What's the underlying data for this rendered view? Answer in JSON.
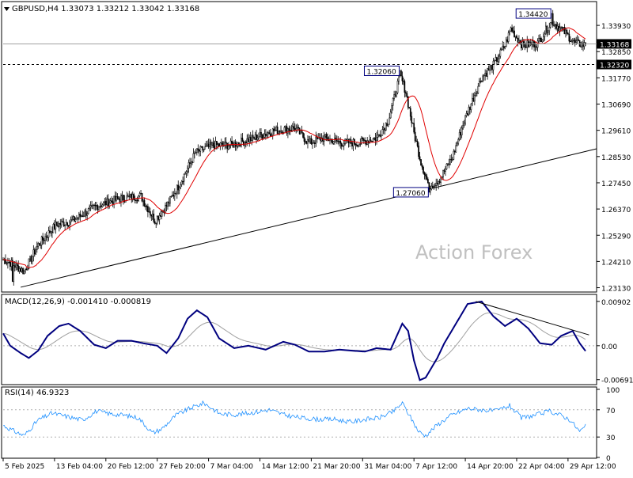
{
  "header": {
    "symbol_line": "GBPUSD,H4  1.33073  1.33212  1.33042  1.33168"
  },
  "watermark": "Action Forex",
  "colors": {
    "background": "#ffffff",
    "frame": "#000000",
    "candle": "#000000",
    "ma": "#e00000",
    "trendline": "#000000",
    "macd": "#00007f",
    "macd_signal": "#a0a0a0",
    "rsi": "#1e90ff",
    "level_line": "#000000",
    "watermark": "#c0c0c0"
  },
  "chart_data": [
    {
      "type": "candlestick",
      "panel": "price",
      "ylim": [
        1.2305,
        1.3478
      ],
      "y_ticks": [
        "1.33930",
        "1.32850",
        "1.31770",
        "1.30690",
        "1.29610",
        "1.28530",
        "1.27450",
        "1.26370",
        "1.25290",
        "1.24210",
        "1.23130"
      ],
      "x_tick_labels": [
        "5 Feb 2025",
        "13 Feb 04:00",
        "20 Feb 12:00",
        "27 Feb 20:00",
        "7 Mar 04:00",
        "14 Mar 12:00",
        "21 Mar 20:00",
        "31 Mar 04:00",
        "7 Apr 12:00",
        "14 Apr 20:00",
        "22 Apr 04:00",
        "29 Apr 12:00"
      ],
      "x_tick_index": [
        0,
        44,
        88,
        132,
        176,
        220,
        264,
        308,
        352,
        396,
        440,
        484
      ],
      "bar_count": 500,
      "close_anchors": [
        [
          0,
          1.243
        ],
        [
          8,
          1.241
        ],
        [
          18,
          1.238
        ],
        [
          30,
          1.249
        ],
        [
          45,
          1.257
        ],
        [
          60,
          1.259
        ],
        [
          80,
          1.265
        ],
        [
          100,
          1.268
        ],
        [
          118,
          1.269
        ],
        [
          130,
          1.259
        ],
        [
          140,
          1.265
        ],
        [
          150,
          1.273
        ],
        [
          165,
          1.287
        ],
        [
          180,
          1.29
        ],
        [
          195,
          1.29
        ],
        [
          215,
          1.293
        ],
        [
          232,
          1.296
        ],
        [
          250,
          1.297
        ],
        [
          262,
          1.291
        ],
        [
          275,
          1.293
        ],
        [
          290,
          1.291
        ],
        [
          305,
          1.291
        ],
        [
          320,
          1.293
        ],
        [
          330,
          1.3
        ],
        [
          340,
          1.319
        ],
        [
          345,
          1.312
        ],
        [
          352,
          1.295
        ],
        [
          358,
          1.283
        ],
        [
          365,
          1.273
        ],
        [
          374,
          1.276
        ],
        [
          385,
          1.285
        ],
        [
          395,
          1.3
        ],
        [
          410,
          1.318
        ],
        [
          420,
          1.323
        ],
        [
          430,
          1.331
        ],
        [
          435,
          1.338
        ],
        [
          445,
          1.331
        ],
        [
          458,
          1.332
        ],
        [
          470,
          1.341
        ],
        [
          480,
          1.337
        ],
        [
          490,
          1.332
        ],
        [
          500,
          1.331
        ]
      ],
      "extremes": [
        [
          8,
          1.2338
        ],
        [
          340,
          1.3206
        ],
        [
          365,
          1.2706
        ],
        [
          470,
          1.3442
        ]
      ],
      "last_close": 1.33168,
      "ma_span": 20,
      "ma_start": [
        1.243,
        1.2405
      ],
      "markers": [
        {
          "label": "1.32060",
          "index": 340,
          "value": 1.3206,
          "align": "left"
        },
        {
          "label": "1.27060",
          "index": 365,
          "value": 1.2706,
          "align": "left"
        },
        {
          "label": "1.34420",
          "index": 470,
          "value": 1.3442,
          "align": "left"
        }
      ],
      "current_price_label": "1.33168",
      "level": {
        "label": "1.32320",
        "value": 1.3232
      },
      "trendline": [
        [
          15,
          1.2315
        ],
        [
          520,
          1.2885
        ]
      ]
    },
    {
      "type": "line",
      "panel": "macd",
      "title": "MACD(12,26,9) -0.001410 -0.000819",
      "ylim": [
        -0.0076,
        0.0098
      ],
      "y_ticks": [
        "0.00902",
        "0.00",
        "-0.006915"
      ],
      "series": [
        {
          "name": "MACD",
          "points": [
            [
              0,
              0.0025
            ],
            [
              6,
              0.0
            ],
            [
              15,
              -0.0015
            ],
            [
              22,
              -0.0025
            ],
            [
              30,
              -0.001
            ],
            [
              38,
              0.002
            ],
            [
              48,
              0.004
            ],
            [
              56,
              0.0045
            ],
            [
              66,
              0.003
            ],
            [
              78,
              0.0002
            ],
            [
              88,
              -0.0005
            ],
            [
              98,
              0.001
            ],
            [
              110,
              0.001
            ],
            [
              120,
              0.0005
            ],
            [
              132,
              0.0
            ],
            [
              140,
              -0.0015
            ],
            [
              150,
              0.0015
            ],
            [
              158,
              0.0055
            ],
            [
              166,
              0.0072
            ],
            [
              175,
              0.0058
            ],
            [
              185,
              0.0015
            ],
            [
              198,
              -0.0005
            ],
            [
              210,
              0.0
            ],
            [
              225,
              -0.0008
            ],
            [
              240,
              0.0008
            ],
            [
              250,
              0.0002
            ],
            [
              262,
              -0.0012
            ],
            [
              275,
              -0.0012
            ],
            [
              288,
              -0.0008
            ],
            [
              298,
              -0.001
            ],
            [
              310,
              -0.0012
            ],
            [
              320,
              -0.0005
            ],
            [
              332,
              -0.0008
            ],
            [
              342,
              0.0045
            ],
            [
              347,
              0.003
            ],
            [
              352,
              -0.003
            ],
            [
              357,
              -0.007
            ],
            [
              362,
              -0.0065
            ],
            [
              372,
              -0.0025
            ],
            [
              378,
              0.0005
            ],
            [
              388,
              0.0045
            ],
            [
              398,
              0.0085
            ],
            [
              410,
              0.009
            ],
            [
              420,
              0.006
            ],
            [
              430,
              0.004
            ],
            [
              440,
              0.0055
            ],
            [
              450,
              0.0035
            ],
            [
              460,
              0.0005
            ],
            [
              470,
              0.0002
            ],
            [
              478,
              0.002
            ],
            [
              488,
              0.003
            ],
            [
              494,
              0.0005
            ],
            [
              500,
              -0.0014
            ]
          ]
        },
        {
          "name": "Signal",
          "smoothing": 0.06
        }
      ],
      "trendline": [
        [
          405,
          0.009
        ],
        [
          502,
          0.0022
        ]
      ]
    },
    {
      "type": "line",
      "panel": "rsi",
      "title": "RSI(14) 46.9323",
      "ylim": [
        0,
        100
      ],
      "y_ticks": [
        "100",
        "70",
        "30",
        "0"
      ],
      "levels": [
        70,
        30
      ],
      "series": [
        {
          "name": "RSI",
          "points": [
            [
              0,
              47
            ],
            [
              10,
              38
            ],
            [
              18,
              32
            ],
            [
              30,
              55
            ],
            [
              42,
              65
            ],
            [
              55,
              60
            ],
            [
              68,
              55
            ],
            [
              80,
              68
            ],
            [
              92,
              64
            ],
            [
              104,
              62
            ],
            [
              116,
              58
            ],
            [
              128,
              36
            ],
            [
              136,
              42
            ],
            [
              148,
              62
            ],
            [
              160,
              72
            ],
            [
              172,
              80
            ],
            [
              186,
              64
            ],
            [
              200,
              63
            ],
            [
              214,
              66
            ],
            [
              228,
              70
            ],
            [
              242,
              62
            ],
            [
              256,
              58
            ],
            [
              270,
              56
            ],
            [
              284,
              56
            ],
            [
              298,
              52
            ],
            [
              310,
              56
            ],
            [
              322,
              58
            ],
            [
              334,
              67
            ],
            [
              342,
              80
            ],
            [
              348,
              62
            ],
            [
              356,
              38
            ],
            [
              362,
              32
            ],
            [
              372,
              48
            ],
            [
              384,
              62
            ],
            [
              398,
              72
            ],
            [
              410,
              70
            ],
            [
              422,
              68
            ],
            [
              434,
              76
            ],
            [
              444,
              58
            ],
            [
              456,
              62
            ],
            [
              468,
              68
            ],
            [
              478,
              62
            ],
            [
              486,
              55
            ],
            [
              494,
              38
            ],
            [
              500,
              47
            ]
          ]
        }
      ]
    }
  ]
}
